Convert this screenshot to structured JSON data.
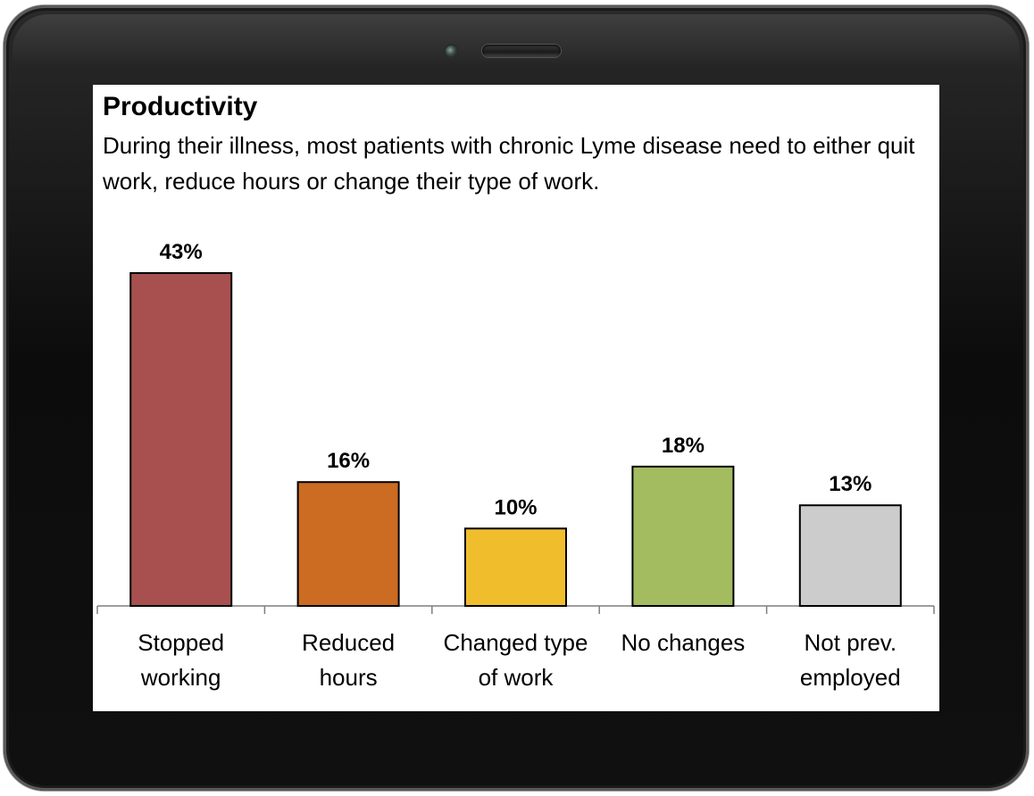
{
  "chart_data": {
    "type": "bar",
    "title": "Productivity",
    "subtitle": "During their illness, most patients with chronic  Lyme disease  need to either quit work, reduce hours or change their type of work.",
    "categories": [
      [
        "Stopped",
        "working"
      ],
      [
        "Reduced",
        "hours"
      ],
      [
        "Changed type",
        "of work"
      ],
      [
        "No changes"
      ],
      [
        "Not prev.",
        "employed"
      ]
    ],
    "values": [
      43,
      16,
      10,
      18,
      13
    ],
    "value_labels": [
      "43%",
      "16%",
      "10%",
      "18%",
      "13%"
    ],
    "colors": [
      "#a8504f",
      "#cc6b22",
      "#f0be2c",
      "#a4bc60",
      "#cccccc"
    ],
    "ylim": [
      0,
      43
    ],
    "xlabel": "",
    "ylabel": "",
    "grid": false,
    "legend": "none"
  }
}
